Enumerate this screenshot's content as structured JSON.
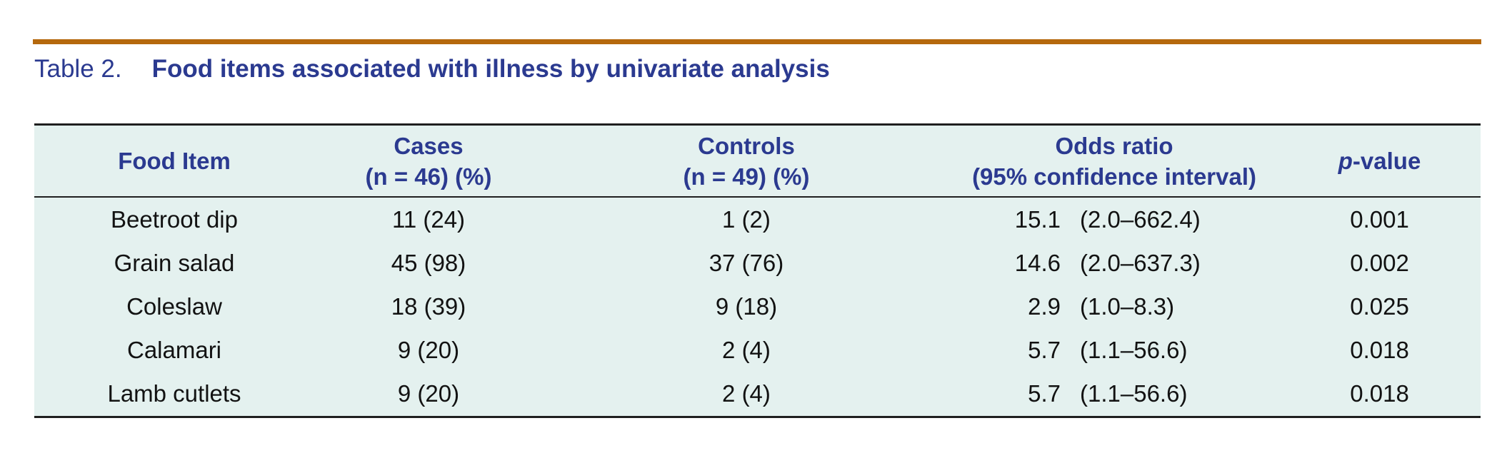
{
  "title": {
    "label": "Table 2.",
    "text": "Food items associated with illness by univariate analysis"
  },
  "table": {
    "header": {
      "food": "Food Item",
      "cases_line1": "Cases",
      "cases_line2": "(n = 46) (%)",
      "controls_line1": "Controls",
      "controls_line2": "(n = 49) (%)",
      "odds_line1": "Odds ratio",
      "odds_line2": "(95% confidence interval)",
      "p_italic": "p",
      "p_rest": "-value"
    },
    "rows": [
      {
        "food": "Beetroot dip",
        "cases": "11 (24)",
        "controls": "1 (2)",
        "or": "15.1",
        "ci": "(2.0–662.4)",
        "p": "0.001"
      },
      {
        "food": "Grain salad",
        "cases": "45 (98)",
        "controls": "37 (76)",
        "or": "14.6",
        "ci": "(2.0–637.3)",
        "p": "0.002"
      },
      {
        "food": "Coleslaw",
        "cases": "18 (39)",
        "controls": "9 (18)",
        "or": "2.9",
        "ci": "(1.0–8.3)",
        "p": "0.025"
      },
      {
        "food": "Calamari",
        "cases": "9 (20)",
        "controls": "2 (4)",
        "or": "5.7",
        "ci": "(1.1–56.6)",
        "p": "0.018"
      },
      {
        "food": "Lamb cutlets",
        "cases": "9 (20)",
        "controls": "2 (4)",
        "or": "5.7",
        "ci": "(1.1–56.6)",
        "p": "0.018"
      }
    ]
  },
  "colors": {
    "accent_rule_orange": "#b5690d",
    "heading_navy": "#2b3a90",
    "table_background": "#e4f1ef",
    "rule_black": "#1f1f1f",
    "body_text": "#121212"
  }
}
